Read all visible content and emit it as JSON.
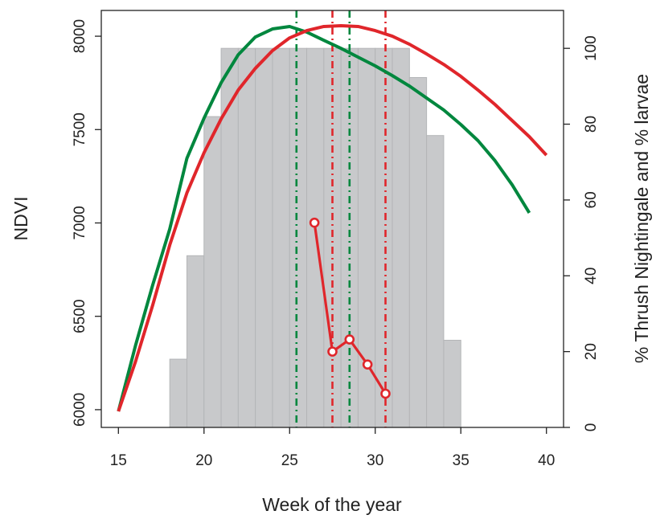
{
  "chart_data": {
    "type": "line",
    "xlabel": "Week of the year",
    "ylabel": "NDVI",
    "y2label": "% Thrush Nightingale and % larvae",
    "xlim": [
      14,
      41
    ],
    "xticks": [
      15,
      20,
      25,
      30,
      35,
      40
    ],
    "ylim": [
      5905,
      8138
    ],
    "yticks": [
      6000,
      6500,
      7000,
      7500,
      8000
    ],
    "y2lim": [
      0,
      110
    ],
    "y2ticks": [
      0,
      20,
      40,
      60,
      80,
      100
    ],
    "histogram": {
      "bins": [
        18,
        19,
        20,
        21,
        22,
        23,
        24,
        25,
        26,
        27,
        28,
        29,
        30,
        31,
        32,
        33,
        34,
        35
      ],
      "values": [
        18,
        45.3,
        82,
        100,
        100,
        100,
        100,
        100,
        100,
        100,
        100,
        100,
        100,
        100,
        92.3,
        77,
        23
      ],
      "color": "#c8c9cb",
      "axis": "y2"
    },
    "series": [
      {
        "color": "#00873e",
        "x": [
          15,
          16,
          17,
          18,
          19,
          20,
          21,
          22,
          23,
          24,
          25,
          26,
          27,
          28,
          29,
          30,
          31,
          32,
          33,
          34,
          35,
          36,
          37,
          38,
          39
        ],
        "values": [
          5991,
          6344,
          6667,
          6968,
          7346,
          7561,
          7751,
          7901,
          7996,
          8039,
          8052,
          8022,
          7978,
          7935,
          7888,
          7841,
          7789,
          7733,
          7669,
          7605,
          7527,
          7441,
          7333,
          7204,
          7054
        ]
      },
      {
        "color": "#e0262b",
        "x": [
          15,
          16,
          17,
          18,
          19,
          20,
          21,
          22,
          23,
          24,
          25,
          26,
          27,
          28,
          29,
          30,
          31,
          32,
          33,
          34,
          35,
          36,
          37,
          38,
          39,
          40
        ],
        "values": [
          5991,
          6258,
          6559,
          6882,
          7161,
          7376,
          7557,
          7712,
          7828,
          7923,
          7991,
          8030,
          8052,
          8056,
          8052,
          8030,
          8000,
          7957,
          7905,
          7849,
          7785,
          7712,
          7634,
          7548,
          7462,
          7363
        ]
      },
      {
        "color": "#e0262b",
        "axis": "y2",
        "markers": true,
        "x": [
          26.45,
          27.5,
          28.5,
          29.55,
          30.6
        ],
        "values": [
          54,
          20,
          23.2,
          16.6,
          8.9
        ]
      }
    ],
    "vlines": [
      {
        "x": 25.4,
        "color": "#00873e"
      },
      {
        "x": 28.5,
        "color": "#00873e"
      },
      {
        "x": 27.5,
        "color": "#e0262b"
      },
      {
        "x": 30.6,
        "color": "#e0262b"
      }
    ]
  }
}
